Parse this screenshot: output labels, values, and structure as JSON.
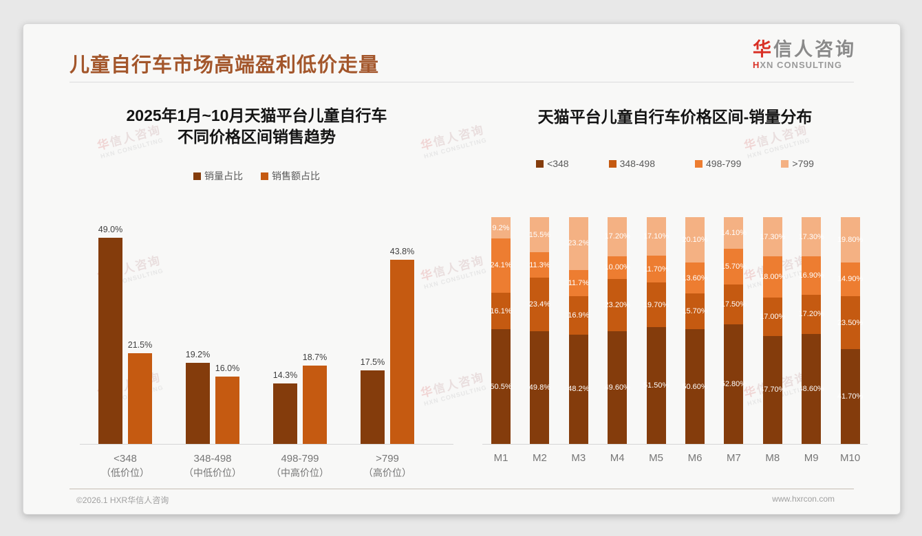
{
  "page": {
    "header": {
      "title": "儿童自行车市场高端盈利低价走量",
      "logo_cn_accent": "华",
      "logo_cn_rest": "信人咨询",
      "logo_en_accent": "H",
      "logo_en_rest": "XN CONSULTING"
    },
    "footer": {
      "left": "©2026.1 HXR华信人咨询",
      "right": "www.hxrcon.com"
    },
    "watermark": {
      "line1_accent": "华",
      "line1_rest": "信人咨询",
      "line2": "HXN CONSULTING"
    },
    "colors": {
      "title": "#a3562b",
      "series_dark_brown": "#843C0C",
      "series_dark_orange": "#C55A11",
      "series_orange": "#ED7D31",
      "series_light_orange": "#F4B183"
    }
  },
  "chart_data": [
    {
      "type": "bar",
      "stacked": false,
      "title_lines": [
        "2025年1月~10月天猫平台儿童自行车",
        "不同价格区间销售趋势"
      ],
      "categories": [
        "<348",
        "348-498",
        "498-799",
        ">799"
      ],
      "category_sublabels": [
        "（低价位）",
        "（中低价位）",
        "（中高价位）",
        "（高价位）"
      ],
      "series": [
        {
          "name": "销量占比",
          "color": "#843C0C",
          "values": [
            49.0,
            19.2,
            14.3,
            17.5
          ],
          "labels": [
            "49.0%",
            "19.2%",
            "14.3%",
            "17.5%"
          ]
        },
        {
          "name": "销售额占比",
          "color": "#C55A11",
          "values": [
            21.5,
            16.0,
            18.7,
            43.8
          ],
          "labels": [
            "21.5%",
            "16.0%",
            "18.7%",
            "43.8%"
          ]
        }
      ],
      "ylim": [
        0,
        55
      ],
      "grid": false,
      "legend_position": "top"
    },
    {
      "type": "bar",
      "stacked": true,
      "title": "天猫平台儿童自行车价格区间-销量分布",
      "categories": [
        "M1",
        "M2",
        "M3",
        "M4",
        "M5",
        "M6",
        "M7",
        "M8",
        "M9",
        "M10"
      ],
      "series": [
        {
          "name": "<348",
          "color": "#843C0C",
          "values": [
            50.5,
            49.8,
            48.2,
            49.6,
            51.5,
            50.6,
            52.8,
            47.7,
            48.6,
            41.7
          ],
          "labels": [
            "50.5%",
            "49.8%",
            "48.2%",
            "49.60%",
            "51.50%",
            "50.60%",
            "52.80%",
            "47.70%",
            "48.60%",
            "41.70%"
          ]
        },
        {
          "name": "348-498",
          "color": "#C55A11",
          "values": [
            16.1,
            23.4,
            16.9,
            23.2,
            19.7,
            15.7,
            17.5,
            17.0,
            17.2,
            23.5
          ],
          "labels": [
            "16.1%",
            "23.4%",
            "16.9%",
            "23.20%",
            "19.70%",
            "15.70%",
            "17.50%",
            "17.00%",
            "17.20%",
            "23.50%"
          ]
        },
        {
          "name": "498-799",
          "color": "#ED7D31",
          "values": [
            24.1,
            11.3,
            11.7,
            10.0,
            11.7,
            13.6,
            15.7,
            18.0,
            16.9,
            14.9
          ],
          "labels": [
            "24.1%",
            "11.3%",
            "11.7%",
            "10.00%",
            "11.70%",
            "13.60%",
            "15.70%",
            "18.00%",
            "16.90%",
            "14.90%"
          ]
        },
        {
          "name": ">799",
          "color": "#F4B183",
          "values": [
            9.2,
            15.5,
            23.2,
            17.2,
            17.1,
            20.1,
            14.1,
            17.3,
            17.3,
            19.8
          ],
          "labels": [
            "9.2%",
            "15.5%",
            "23.2%",
            "17.20%",
            "17.10%",
            "20.10%",
            "14.10%",
            "17.30%",
            "17.30%",
            "19.80%"
          ]
        }
      ],
      "ylim": [
        0,
        100
      ],
      "grid": false,
      "legend_position": "top"
    }
  ]
}
